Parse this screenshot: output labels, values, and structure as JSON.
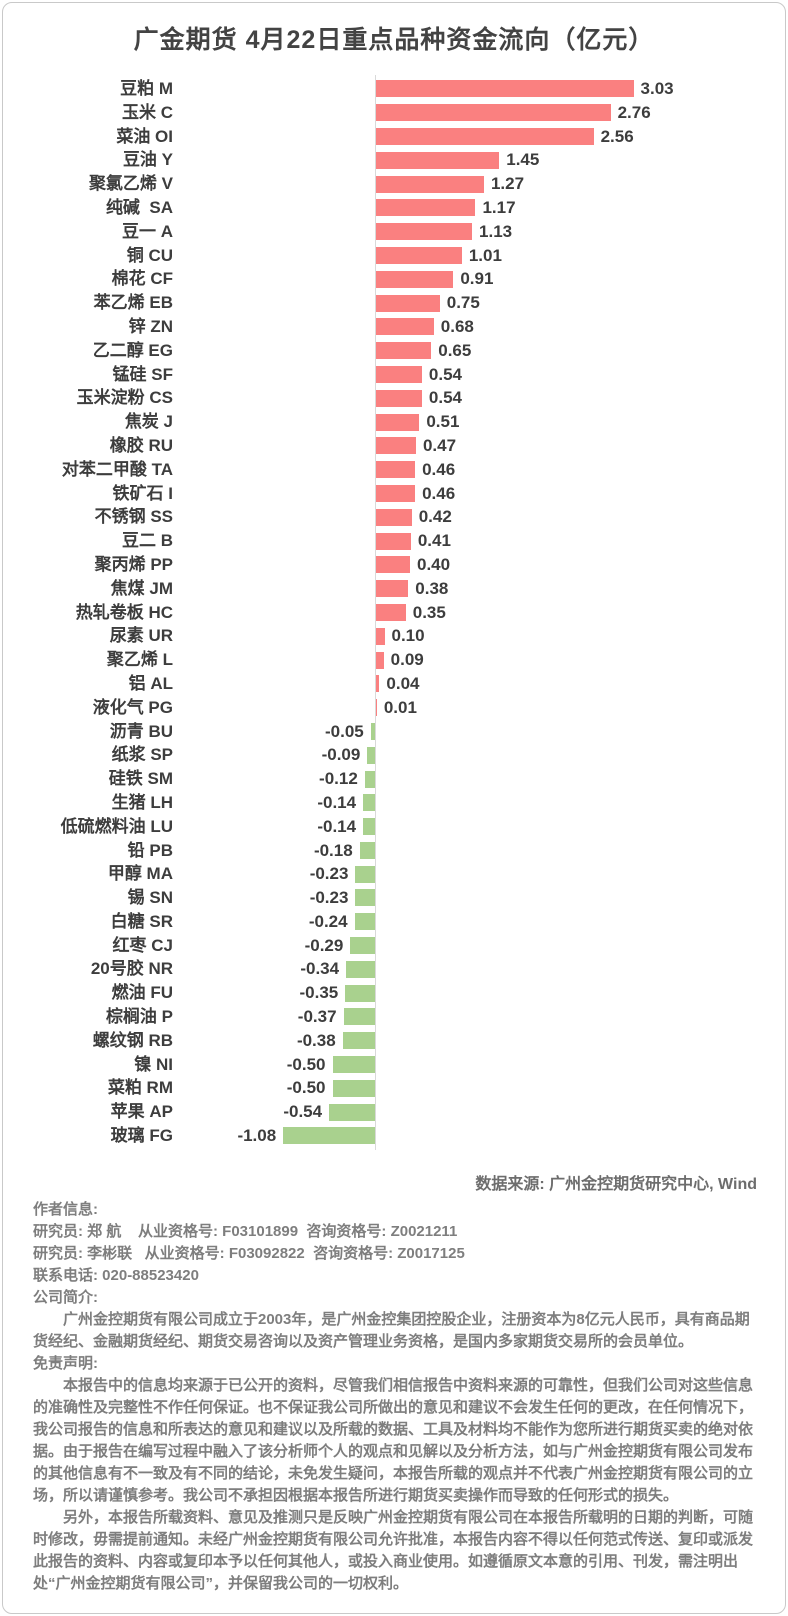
{
  "title": "广金期货 4月22日重点品种资金流向（亿元）",
  "source_note": "数据来源: 广州金控期货研究中心, Wind",
  "chart_data": {
    "type": "bar",
    "orientation": "horizontal",
    "title": "广金期货 4月22日重点品种资金流向（亿元）",
    "unit": "亿元",
    "xlabel": "",
    "ylabel": "",
    "xlim": [
      -1.3,
      3.2
    ],
    "grid": false,
    "legend": false,
    "positive_color": "#fa8080",
    "negative_color": "#a9d18e",
    "categories": [
      "豆粕 M",
      "玉米 C",
      "菜油 OI",
      "豆油 Y",
      "聚氯乙烯 V",
      "纯碱  SA",
      "豆一 A",
      "铜 CU",
      "棉花 CF",
      "苯乙烯 EB",
      "锌 ZN",
      "乙二醇 EG",
      "锰硅 SF",
      "玉米淀粉 CS",
      "焦炭 J",
      "橡胶 RU",
      "对苯二甲酸 TA",
      "铁矿石 I",
      "不锈钢 SS",
      "豆二 B",
      "聚丙烯 PP",
      "焦煤 JM",
      "热轧卷板 HC",
      "尿素 UR",
      "聚乙烯 L",
      "铝 AL",
      "液化气 PG",
      "沥青 BU",
      "纸浆 SP",
      "硅铁 SM",
      "生猪 LH",
      "低硫燃料油 LU",
      "铅 PB",
      "甲醇 MA",
      "锡 SN",
      "白糖 SR",
      "红枣 CJ",
      "20号胶 NR",
      "燃油 FU",
      "棕榈油 P",
      "螺纹钢 RB",
      "镍 NI",
      "菜粕 RM",
      "苹果 AP",
      "玻璃 FG"
    ],
    "values": [
      3.03,
      2.76,
      2.56,
      1.45,
      1.27,
      1.17,
      1.13,
      1.01,
      0.91,
      0.75,
      0.68,
      0.65,
      0.54,
      0.54,
      0.51,
      0.47,
      0.46,
      0.46,
      0.42,
      0.41,
      0.4,
      0.38,
      0.35,
      0.1,
      0.09,
      0.04,
      0.01,
      -0.05,
      -0.09,
      -0.12,
      -0.14,
      -0.14,
      -0.18,
      -0.23,
      -0.23,
      -0.24,
      -0.29,
      -0.34,
      -0.35,
      -0.37,
      -0.38,
      -0.5,
      -0.5,
      -0.54,
      -1.08
    ],
    "value_labels": [
      "3.03",
      "2.76",
      "2.56",
      "1.45",
      "1.27",
      "1.17",
      "1.13",
      "1.01",
      "0.91",
      "0.75",
      "0.68",
      "0.65",
      "0.54",
      "0.54",
      "0.51",
      "0.47",
      "0.46",
      "0.46",
      "0.42",
      "0.41",
      "0.40",
      "0.38",
      "0.35",
      "0.10",
      "0.09",
      "0.04",
      "0.01",
      "-0.05",
      "-0.09",
      "-0.12",
      "-0.14",
      "-0.14",
      "-0.18",
      "-0.23",
      "-0.23",
      "-0.24",
      "-0.29",
      "-0.34",
      "-0.35",
      "-0.37",
      "-0.38",
      "-0.50",
      "-0.50",
      "-0.54",
      "-1.08"
    ]
  },
  "footer": {
    "author_heading": "作者信息:",
    "researcher1": "研究员: 郑 航    从业资格号: F03101899  咨询资格号: Z0021211",
    "researcher2": "研究员: 李彬联   从业资格号: F03092822  咨询资格号: Z0017125",
    "contact": "联系电话: 020-88523420",
    "company_heading": "公司简介:",
    "company_text": "广州金控期货有限公司成立于2003年，是广州金控集团控股企业，注册资本为8亿元人民币，具有商品期货经纪、金融期货经纪、期货交易咨询以及资产管理业务资格，是国内多家期货交易所的会员单位。",
    "disclaimer_heading": "免责声明:",
    "disclaimer_p1": "本报告中的信息均来源于已公开的资料，尽管我们相信报告中资料来源的可靠性，但我们公司对这些信息的准确性及完整性不作任何保证。也不保证我公司所做出的意见和建议不会发生任何的更改，在任何情况下，我公司报告的信息和所表达的意见和建议以及所载的数据、工具及材料均不能作为您所进行期货买卖的绝对依据。由于报告在编写过程中融入了该分析师个人的观点和见解以及分析方法，如与广州金控期货有限公司发布的其他信息有不一致及有不同的结论，未免发生疑问，本报告所载的观点并不代表广州金控期货有限公司的立场，所以请谨慎参考。我公司不承担因根据本报告所进行期货买卖操作而导致的任何形式的损失。",
    "disclaimer_p2": "另外，本报告所载资料、意见及推测只是反映广州金控期货有限公司在本报告所载明的日期的判断，可随时修改，毋需提前通知。未经广州金控期货有限公司允许批准，本报告内容不得以任何范式传送、复印或派发此报告的资料、内容或复印本予以任何其他人，或投入商业使用。如遵循原文本意的引用、刊发，需注明出处“广州金控期货有限公司”，并保留我公司的一切权利。"
  }
}
